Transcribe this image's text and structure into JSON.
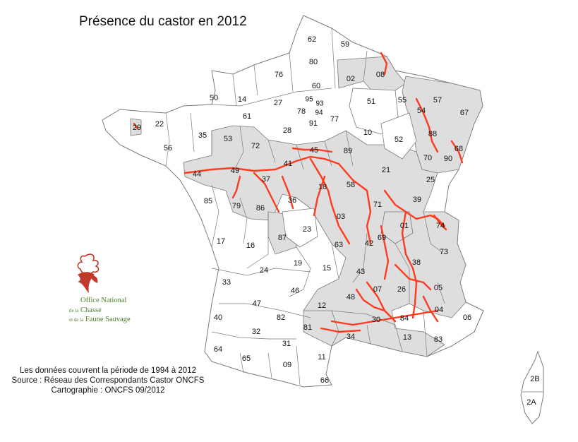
{
  "title": "Présence du castor en 2012",
  "notes": [
    "Les données couvrent la période de 1994 à 2012",
    "Source : Réseau des Correspondants Castor ONCFS",
    "Cartographie : ONCFS 09/2012"
  ],
  "logo": {
    "line1": "Office National",
    "line2_small": "de la",
    "line2": "Chasse",
    "line3_small": "et de la",
    "line3": "Faune Sauvage",
    "color": "#4e7f2c",
    "accent_color": "#c0392b"
  },
  "colors": {
    "presence_fill": "#dedede",
    "absence_fill": "#ffffff",
    "river": "#ff3b1f",
    "border": "#7a7a7a"
  },
  "departments": [
    {
      "code": "62",
      "present": false
    },
    {
      "code": "59",
      "present": false
    },
    {
      "code": "80",
      "present": false
    },
    {
      "code": "02",
      "present": true
    },
    {
      "code": "08",
      "present": true
    },
    {
      "code": "76",
      "present": false
    },
    {
      "code": "60",
      "present": false
    },
    {
      "code": "50",
      "present": false
    },
    {
      "code": "14",
      "present": false
    },
    {
      "code": "27",
      "present": false
    },
    {
      "code": "95",
      "present": false
    },
    {
      "code": "93",
      "present": false
    },
    {
      "code": "94",
      "present": false
    },
    {
      "code": "51",
      "present": false
    },
    {
      "code": "55",
      "present": true
    },
    {
      "code": "57",
      "present": true
    },
    {
      "code": "67",
      "present": true
    },
    {
      "code": "54",
      "present": true
    },
    {
      "code": "61",
      "present": false
    },
    {
      "code": "78",
      "present": false
    },
    {
      "code": "91",
      "present": false
    },
    {
      "code": "77",
      "present": false
    },
    {
      "code": "29",
      "present": true
    },
    {
      "code": "22",
      "present": false
    },
    {
      "code": "35",
      "present": false
    },
    {
      "code": "53",
      "present": true
    },
    {
      "code": "28",
      "present": false
    },
    {
      "code": "10",
      "present": false
    },
    {
      "code": "52",
      "present": false
    },
    {
      "code": "88",
      "present": true
    },
    {
      "code": "68",
      "present": true
    },
    {
      "code": "56",
      "present": false
    },
    {
      "code": "72",
      "present": true
    },
    {
      "code": "45",
      "present": true
    },
    {
      "code": "89",
      "present": true
    },
    {
      "code": "70",
      "present": true
    },
    {
      "code": "90",
      "present": true
    },
    {
      "code": "44",
      "present": true
    },
    {
      "code": "49",
      "present": true
    },
    {
      "code": "41",
      "present": true
    },
    {
      "code": "21",
      "present": true
    },
    {
      "code": "37",
      "present": true
    },
    {
      "code": "18",
      "present": true
    },
    {
      "code": "58",
      "present": true
    },
    {
      "code": "25",
      "present": true
    },
    {
      "code": "85",
      "present": false
    },
    {
      "code": "79",
      "present": true
    },
    {
      "code": "86",
      "present": true
    },
    {
      "code": "36",
      "present": true
    },
    {
      "code": "71",
      "present": true
    },
    {
      "code": "39",
      "present": true
    },
    {
      "code": "03",
      "present": true
    },
    {
      "code": "01",
      "present": true
    },
    {
      "code": "74",
      "present": true
    },
    {
      "code": "17",
      "present": false
    },
    {
      "code": "16",
      "present": false
    },
    {
      "code": "87",
      "present": true
    },
    {
      "code": "23",
      "present": false
    },
    {
      "code": "69",
      "present": true
    },
    {
      "code": "63",
      "present": true
    },
    {
      "code": "42",
      "present": true
    },
    {
      "code": "73",
      "present": true
    },
    {
      "code": "24",
      "present": false
    },
    {
      "code": "19",
      "present": false
    },
    {
      "code": "15",
      "present": false
    },
    {
      "code": "43",
      "present": true
    },
    {
      "code": "38",
      "present": true
    },
    {
      "code": "33",
      "present": false
    },
    {
      "code": "46",
      "present": false
    },
    {
      "code": "07",
      "present": true
    },
    {
      "code": "26",
      "present": true
    },
    {
      "code": "05",
      "present": true
    },
    {
      "code": "47",
      "present": false
    },
    {
      "code": "12",
      "present": true
    },
    {
      "code": "48",
      "present": true
    },
    {
      "code": "04",
      "present": true
    },
    {
      "code": "06",
      "present": false
    },
    {
      "code": "40",
      "present": false
    },
    {
      "code": "82",
      "present": false
    },
    {
      "code": "81",
      "present": true
    },
    {
      "code": "30",
      "present": true
    },
    {
      "code": "84",
      "present": true
    },
    {
      "code": "32",
      "present": false
    },
    {
      "code": "34",
      "present": true
    },
    {
      "code": "13",
      "present": true
    },
    {
      "code": "83",
      "present": true
    },
    {
      "code": "31",
      "present": false
    },
    {
      "code": "64",
      "present": false
    },
    {
      "code": "65",
      "present": false
    },
    {
      "code": "11",
      "present": false
    },
    {
      "code": "09",
      "present": false
    },
    {
      "code": "66",
      "present": false
    },
    {
      "code": "2B",
      "present": false
    },
    {
      "code": "2A",
      "present": false
    }
  ]
}
